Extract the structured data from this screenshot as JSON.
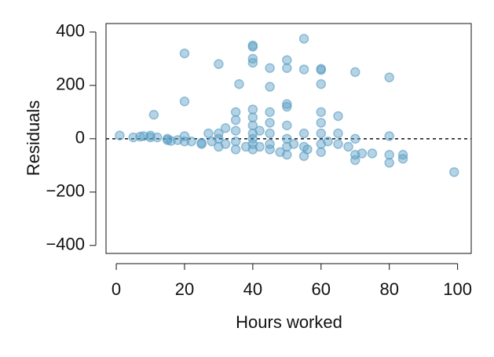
{
  "chart_data": {
    "type": "scatter",
    "x_label": "Hours worked",
    "y_label": "Residuals",
    "color": "#5a9ec4",
    "reference_line": 0,
    "xlim": [
      -3,
      104
    ],
    "ylim": [
      -430,
      432
    ],
    "xticks": [
      0,
      20,
      40,
      60,
      80,
      100
    ],
    "yticks": [
      400,
      200,
      0,
      {
        "value": -200,
        "label": "−200"
      },
      {
        "value": -400,
        "label": "−400"
      }
    ],
    "x": [
      1,
      5,
      7,
      8,
      10,
      10,
      11,
      12,
      15,
      15,
      16,
      18,
      20,
      20,
      20,
      20,
      22,
      25,
      25,
      27,
      28,
      30,
      30,
      30,
      30,
      32,
      32,
      35,
      35,
      35,
      35,
      35,
      36,
      38,
      40,
      40,
      40,
      40,
      40,
      40,
      40,
      40,
      40,
      40,
      40,
      42,
      42,
      45,
      45,
      45,
      45,
      45,
      45,
      45,
      48,
      50,
      50,
      50,
      50,
      50,
      50,
      50,
      50,
      52,
      55,
      55,
      55,
      55,
      55,
      56,
      60,
      60,
      60,
      60,
      60,
      60,
      60,
      60,
      62,
      65,
      65,
      65,
      68,
      70,
      70,
      70,
      70,
      72,
      75,
      80,
      80,
      80,
      80,
      84,
      84,
      99
    ],
    "y": [
      12,
      5,
      8,
      10,
      5,
      12,
      90,
      5,
      -5,
      0,
      -8,
      -5,
      320,
      140,
      10,
      -10,
      -10,
      -15,
      -20,
      20,
      -10,
      280,
      -30,
      20,
      0,
      40,
      -20,
      100,
      70,
      30,
      -10,
      -40,
      205,
      -30,
      350,
      345,
      300,
      285,
      110,
      80,
      50,
      20,
      0,
      -20,
      -40,
      30,
      -30,
      265,
      195,
      100,
      60,
      20,
      -20,
      -40,
      -50,
      295,
      265,
      130,
      120,
      50,
      0,
      -30,
      -60,
      -20,
      375,
      260,
      20,
      -30,
      -65,
      -40,
      262,
      258,
      205,
      100,
      60,
      20,
      -20,
      -50,
      -10,
      85,
      20,
      -20,
      -30,
      250,
      0,
      -60,
      -80,
      -55,
      -55,
      230,
      10,
      -60,
      -90,
      -60,
      -75,
      -125
    ]
  }
}
